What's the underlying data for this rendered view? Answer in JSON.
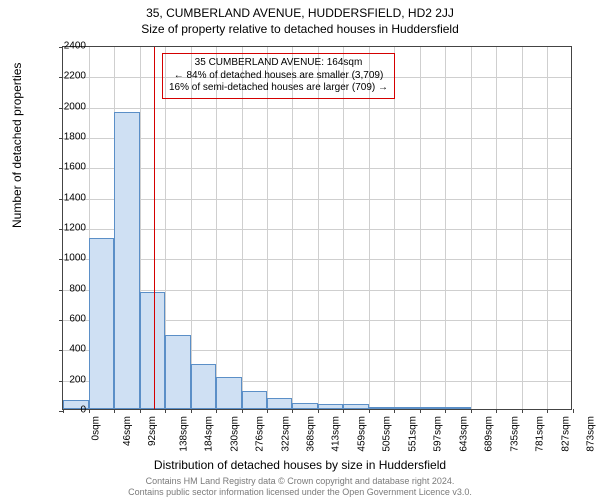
{
  "header": {
    "title_main": "35, CUMBERLAND AVENUE, HUDDERSFIELD, HD2 2JJ",
    "title_sub": "Size of property relative to detached houses in Huddersfield"
  },
  "chart": {
    "type": "histogram",
    "ylabel": "Number of detached properties",
    "xlabel": "Distribution of detached houses by size in Huddersfield",
    "ylim": [
      0,
      2400
    ],
    "ytick_step": 200,
    "background_color": "#ffffff",
    "grid_color": "#cfcfcf",
    "axis_color": "#444444",
    "bar_fill": "#cfe0f3",
    "bar_stroke": "#5b8fc7",
    "refline_color": "#d40000",
    "refline_x_sqm": 164,
    "bin_width_sqm": 46,
    "x_ticks": [
      0,
      46,
      92,
      138,
      184,
      230,
      276,
      322,
      368,
      413,
      459,
      505,
      551,
      597,
      643,
      689,
      735,
      781,
      827,
      873,
      919
    ],
    "x_unit": "sqm",
    "values": [
      60,
      1130,
      1960,
      770,
      490,
      300,
      210,
      120,
      70,
      40,
      30,
      30,
      10,
      5,
      5,
      5,
      0,
      0,
      0,
      0,
      0
    ],
    "label_fontsize": 12,
    "tick_fontsize": 10
  },
  "annotation": {
    "line1": "35 CUMBERLAND AVENUE: 164sqm",
    "line2": "← 84% of detached houses are smaller (3,709)",
    "line3": "16% of semi-detached houses are larger (709) →"
  },
  "footer": {
    "line1": "Contains HM Land Registry data © Crown copyright and database right 2024.",
    "line2": "Contains public sector information licensed under the Open Government Licence v3.0."
  }
}
